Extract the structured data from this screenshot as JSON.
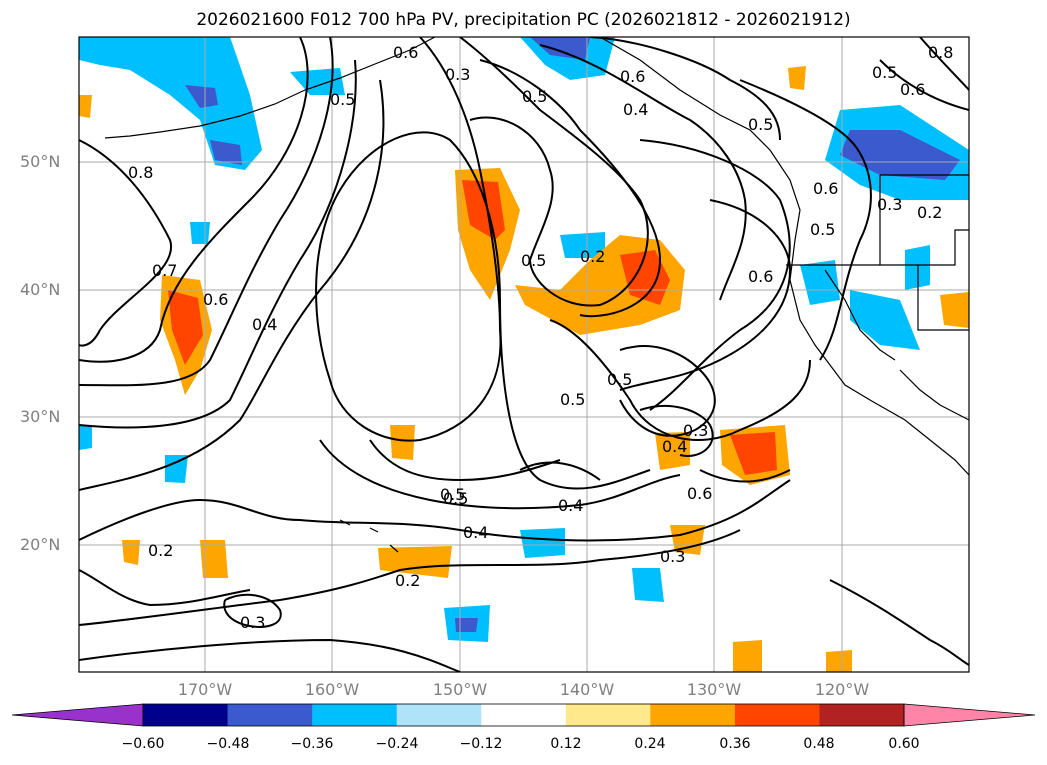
{
  "title": "2026021600 F012 700 hPa PV, precipitation PC (2026021812 - 2026021912)",
  "lat_labels": [
    "50°N",
    "40°N",
    "30°N",
    "20°N"
  ],
  "lon_labels": [
    "170°W",
    "160°W",
    "150°W",
    "140°W",
    "130°W",
    "120°W"
  ],
  "colorbar": {
    "ticks": [
      "−0.60",
      "−0.48",
      "−0.36",
      "−0.24",
      "−0.12",
      "0.12",
      "0.24",
      "0.36",
      "0.48",
      "0.60"
    ],
    "colors": [
      "#9932CC",
      "#00008B",
      "#3A5ACD",
      "#00BFFF",
      "#AEE3FA",
      "#FFFFFF",
      "#FFE98A",
      "#FFA500",
      "#FF4500",
      "#B22222",
      "#FF85A8"
    ]
  },
  "contour_labels": [
    "0.8",
    "0.7",
    "0.6",
    "0.4",
    "0.3",
    "0.5",
    "0.4",
    "0.5",
    "0.2",
    "0.5",
    "0.5",
    "0.5",
    "0.3",
    "0.4",
    "0.6",
    "0.4",
    "0.5",
    "0.4",
    "0.3",
    "0.2",
    "0.2",
    "0.3",
    "0.6",
    "0.5",
    "0.6",
    "0.5",
    "0.3",
    "0.2",
    "0.6",
    "0.8",
    "0.5",
    "0.6",
    "0.5",
    "0.6"
  ]
}
